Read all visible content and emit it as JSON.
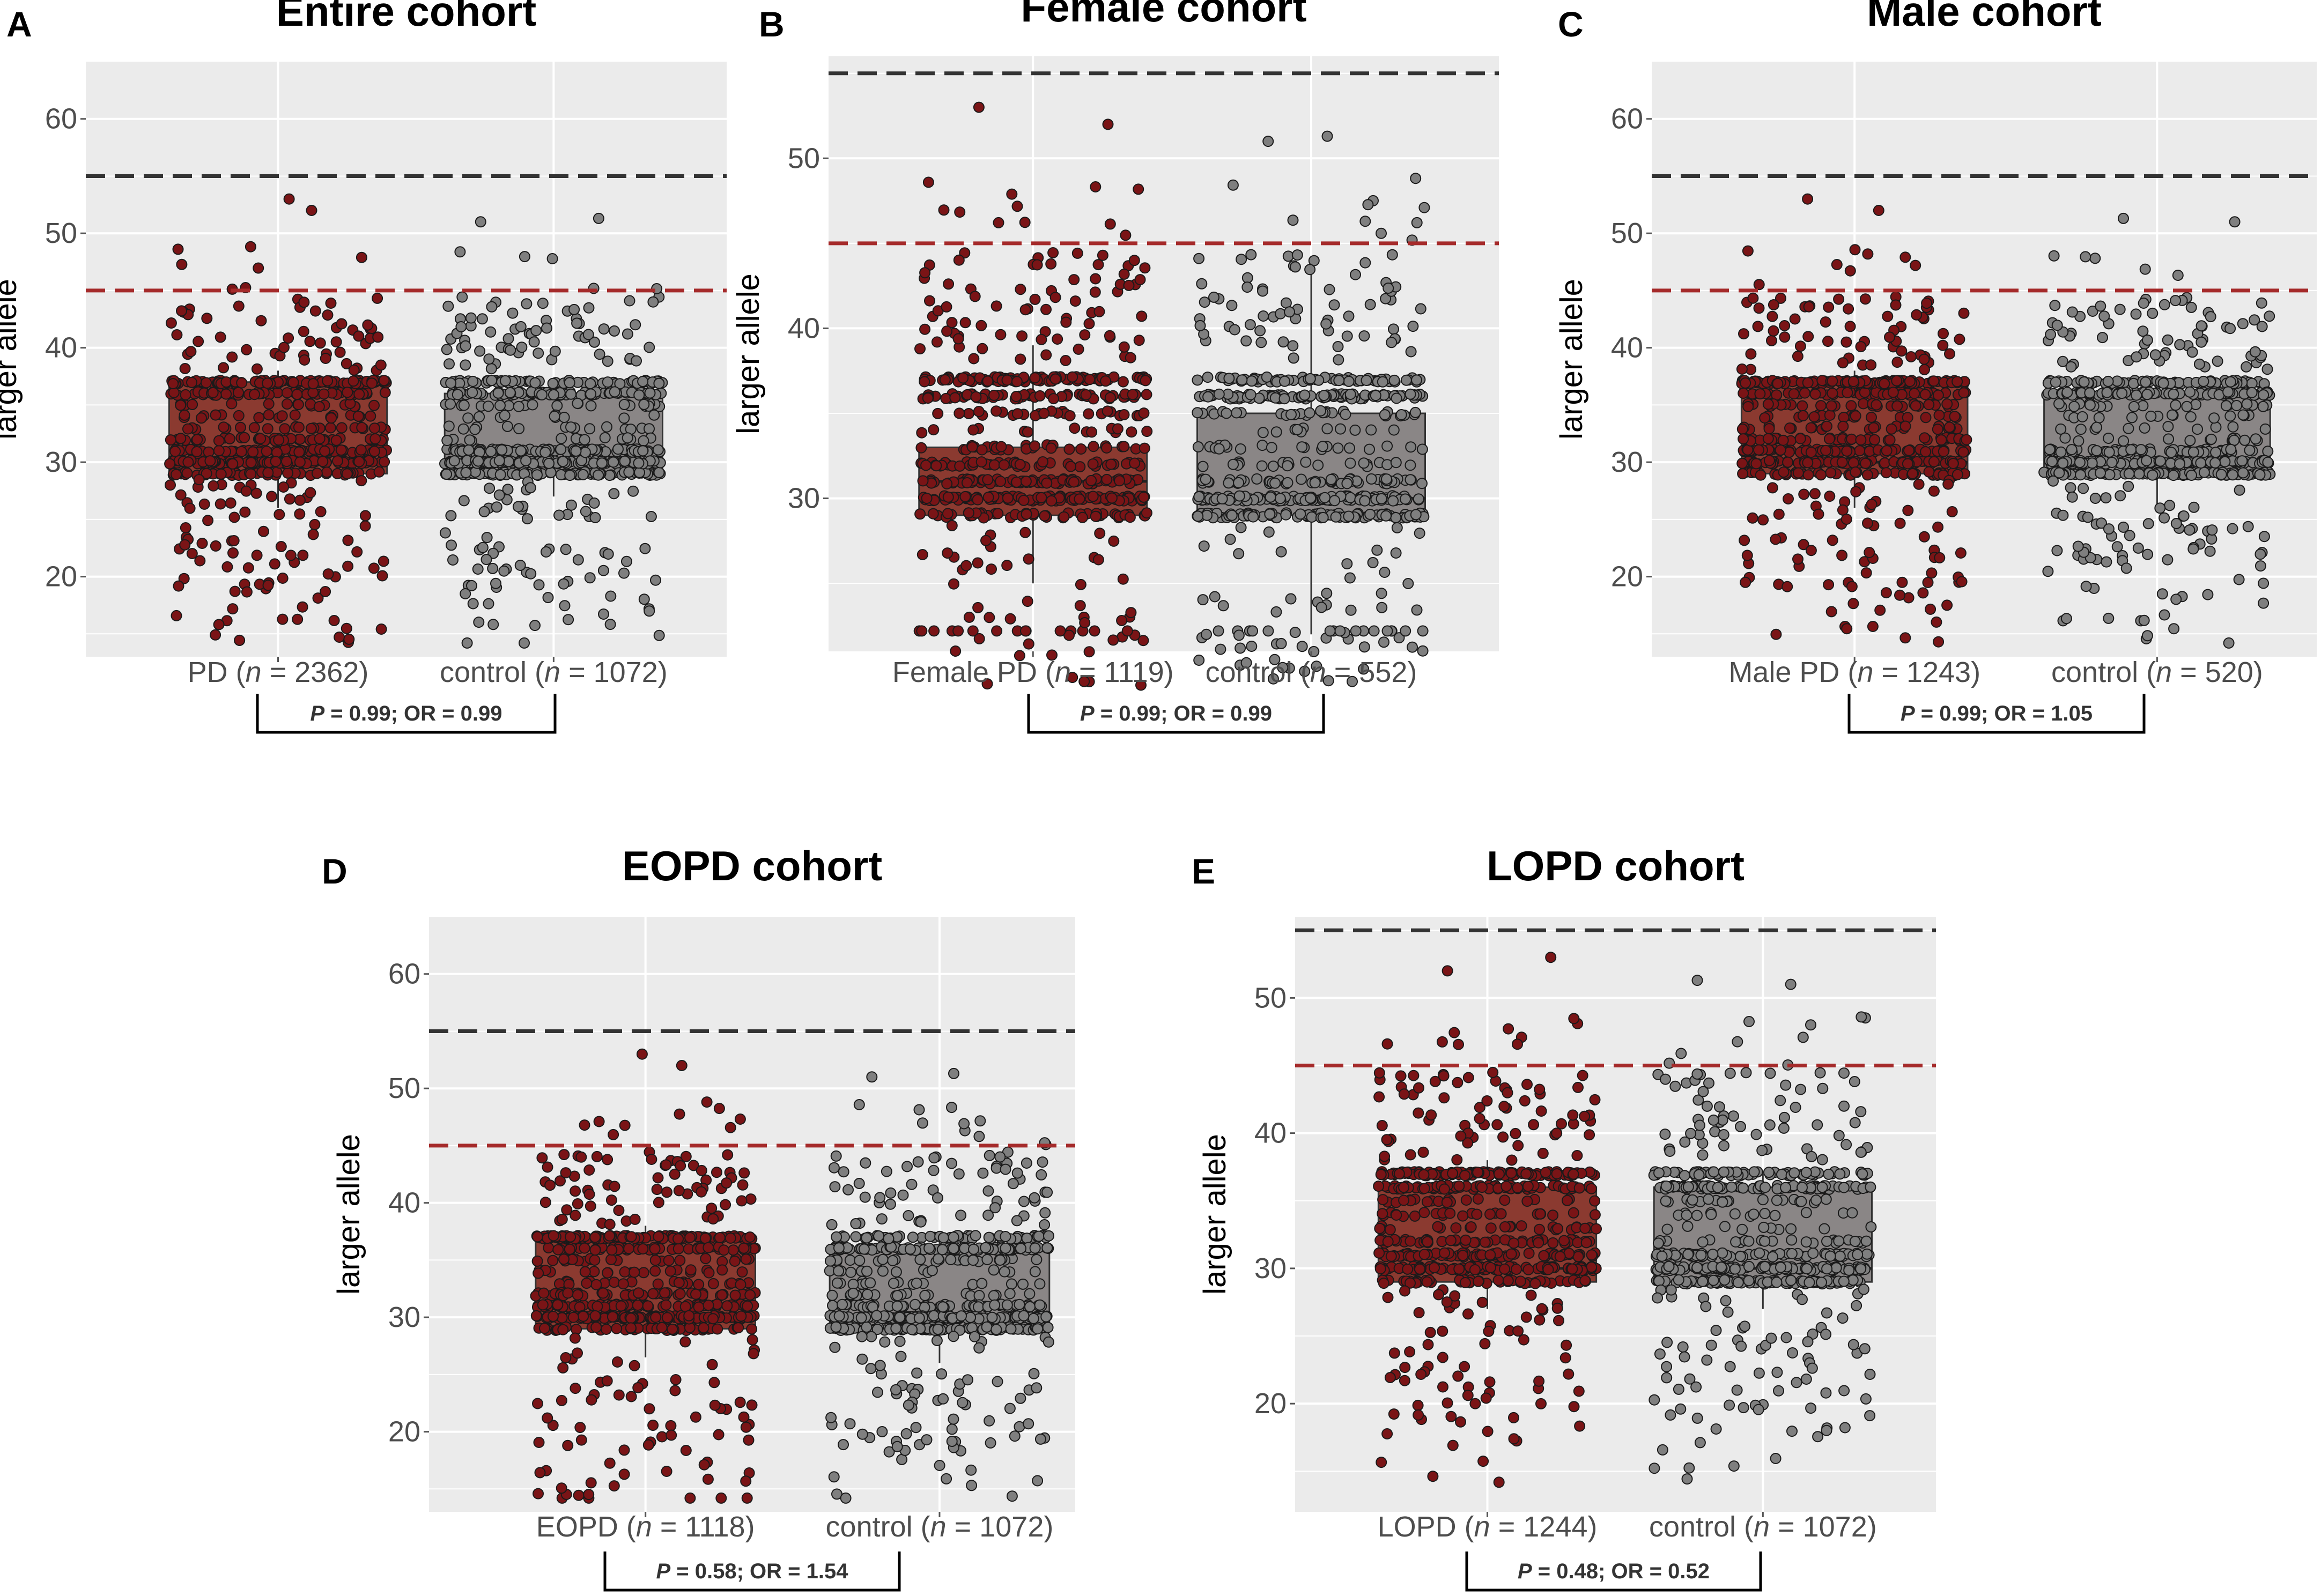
{
  "figure": {
    "ylabel": "larger allele",
    "colors": {
      "panel_bg": "#ebebeb",
      "grid": "#ffffff",
      "pd_point": "#7a1416",
      "pd_box": "#8b3a30",
      "control_point": "#7f7f7f",
      "control_box": "#8a8686",
      "black_line": "#333333",
      "red_line": "#a52a2a"
    }
  },
  "chart_data": [
    {
      "type": "scatter",
      "panel": "A",
      "title": "Entire cohort",
      "ylabel": "larger allele",
      "ylim": [
        13,
        65
      ],
      "yticks": [
        20,
        30,
        40,
        50,
        60
      ],
      "hlines": {
        "black": 55,
        "red": 45
      },
      "groups": [
        {
          "prefix": "PD (",
          "n": "2362",
          "name": "PD",
          "kind": "pd",
          "whisker": [
            26,
            38
          ],
          "box": [
            29,
            37
          ],
          "median": 31
        },
        {
          "prefix": "control (",
          "n": "1072",
          "name": "control",
          "kind": "control",
          "whisker": [
            27,
            37
          ],
          "box": [
            29,
            36
          ],
          "median": 30
        }
      ],
      "stat": "P = 0.99; OR = 0.99",
      "stat_parts": {
        "p": "0.99",
        "or": "0.99"
      }
    },
    {
      "type": "scatter",
      "panel": "B",
      "title": "Female cohort",
      "ylabel": "larger allele",
      "ylim": [
        21,
        56
      ],
      "yticks": [
        30,
        40,
        50
      ],
      "hlines": {
        "black": 55,
        "red": 45
      },
      "groups": [
        {
          "prefix": "Female PD (",
          "n": "1119",
          "name": "Female PD",
          "kind": "pd",
          "whisker": [
            25,
            39
          ],
          "box": [
            29,
            33
          ],
          "median": 31
        },
        {
          "prefix": "control (",
          "n": "552",
          "name": "control",
          "kind": "control",
          "whisker": [
            22,
            43.5
          ],
          "box": [
            29,
            35
          ],
          "median": 30
        }
      ],
      "stat": "P = 0.99; OR = 0.99",
      "stat_parts": {
        "p": "0.99",
        "or": "0.99"
      }
    },
    {
      "type": "scatter",
      "panel": "C",
      "title": "Male cohort",
      "ylabel": "larger allele",
      "ylim": [
        13,
        65
      ],
      "yticks": [
        20,
        30,
        40,
        50,
        60
      ],
      "hlines": {
        "black": 55,
        "red": 45
      },
      "groups": [
        {
          "prefix": "Male PD (",
          "n": "1243",
          "name": "Male PD",
          "kind": "pd",
          "whisker": [
            26,
            38
          ],
          "box": [
            29,
            37
          ],
          "median": 30
        },
        {
          "prefix": "control (",
          "n": "520",
          "name": "control",
          "kind": "control",
          "whisker": [
            26,
            37
          ],
          "box": [
            29,
            36
          ],
          "median": 30
        }
      ],
      "stat": "P = 0.99; OR = 1.05",
      "stat_parts": {
        "p": "0.99",
        "or": "1.05"
      }
    },
    {
      "type": "scatter",
      "panel": "D",
      "title": "EOPD cohort",
      "ylabel": "larger allele",
      "ylim": [
        13,
        65
      ],
      "yticks": [
        20,
        30,
        40,
        50,
        60
      ],
      "hlines": {
        "black": 55,
        "red": 45
      },
      "groups": [
        {
          "prefix": "EOPD (",
          "n": "1118",
          "name": "EOPD",
          "kind": "pd",
          "whisker": [
            26.5,
            38
          ],
          "box": [
            29,
            37
          ],
          "median": 30
        },
        {
          "prefix": "control (",
          "n": "1072",
          "name": "control",
          "kind": "control",
          "whisker": [
            26,
            37
          ],
          "box": [
            29,
            36
          ],
          "median": 30
        }
      ],
      "stat": "P = 0.58; OR = 1.54",
      "stat_parts": {
        "p": "0.58",
        "or": "1.54"
      }
    },
    {
      "type": "scatter",
      "panel": "E",
      "title": "LOPD cohort",
      "ylabel": "larger allele",
      "ylim": [
        12,
        56
      ],
      "yticks": [
        20,
        30,
        40,
        50
      ],
      "hlines": {
        "black": 55,
        "red": 45
      },
      "groups": [
        {
          "prefix": "LOPD (",
          "n": "1244",
          "name": "LOPD",
          "kind": "pd",
          "whisker": [
            27,
            38
          ],
          "box": [
            29,
            36
          ],
          "median": 30
        },
        {
          "prefix": "control (",
          "n": "1072",
          "name": "control",
          "kind": "control",
          "whisker": [
            27,
            37
          ],
          "box": [
            29,
            36
          ],
          "median": 30
        }
      ],
      "stat": "P = 0.48; OR = 0.52",
      "stat_parts": {
        "p": "0.48",
        "or": "0.52"
      }
    }
  ]
}
